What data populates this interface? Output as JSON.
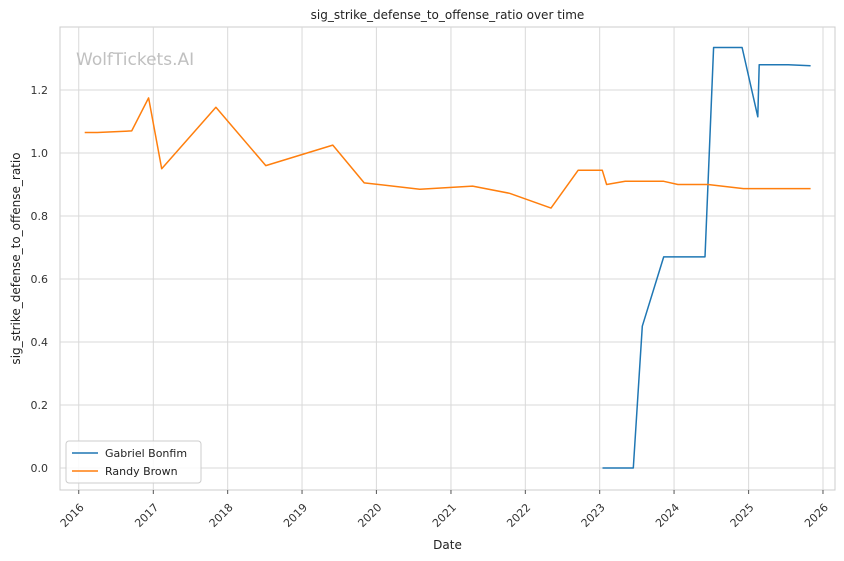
{
  "chart_data": {
    "type": "line",
    "title": "sig_strike_defense_to_offense_ratio over time",
    "xlabel": "Date",
    "ylabel": "sig_strike_defense_to_offense_ratio",
    "watermark": "WolfTickets.AI",
    "x_ticks": [
      "2016",
      "2017",
      "2018",
      "2019",
      "2020",
      "2021",
      "2022",
      "2023",
      "2024",
      "2025",
      "2026"
    ],
    "y_ticks": [
      "0.0",
      "0.2",
      "0.4",
      "0.6",
      "0.8",
      "1.0",
      "1.2"
    ],
    "ylim": [
      -0.07,
      1.4
    ],
    "xlim": [
      "2015-10-01",
      "2026-03-01"
    ],
    "grid": true,
    "legend_position": "bottom-left",
    "series": [
      {
        "name": "Gabriel Bonfim",
        "color": "#1f77b4",
        "points": [
          [
            "2023-01-15",
            0.0
          ],
          [
            "2023-06-15",
            0.0
          ],
          [
            "2023-07-29",
            0.45
          ],
          [
            "2023-11-11",
            0.67
          ],
          [
            "2024-06-01",
            0.67
          ],
          [
            "2024-07-13",
            1.335
          ],
          [
            "2024-11-30",
            1.335
          ],
          [
            "2025-02-15",
            1.115
          ],
          [
            "2025-02-22",
            1.28
          ],
          [
            "2025-07-15",
            1.28
          ],
          [
            "2025-11-01",
            1.277
          ]
        ]
      },
      {
        "name": "Randy Brown",
        "color": "#ff7f0e",
        "points": [
          [
            "2016-01-30",
            1.065
          ],
          [
            "2016-04-01",
            1.065
          ],
          [
            "2016-09-17",
            1.07
          ],
          [
            "2016-12-09",
            1.175
          ],
          [
            "2017-02-11",
            0.95
          ],
          [
            "2017-11-04",
            1.145
          ],
          [
            "2018-07-07",
            0.96
          ],
          [
            "2019-06-01",
            1.025
          ],
          [
            "2019-11-02",
            0.905
          ],
          [
            "2020-08-01",
            0.885
          ],
          [
            "2021-04-17",
            0.895
          ],
          [
            "2021-10-16",
            0.872
          ],
          [
            "2022-05-07",
            0.825
          ],
          [
            "2022-09-17",
            0.945
          ],
          [
            "2023-01-14",
            0.945
          ],
          [
            "2023-02-04",
            0.9
          ],
          [
            "2023-05-06",
            0.91
          ],
          [
            "2023-11-11",
            0.91
          ],
          [
            "2024-01-20",
            0.9
          ],
          [
            "2024-06-15",
            0.9
          ],
          [
            "2024-12-07",
            0.887
          ],
          [
            "2025-05-01",
            0.887
          ],
          [
            "2025-11-01",
            0.887
          ]
        ]
      }
    ]
  }
}
